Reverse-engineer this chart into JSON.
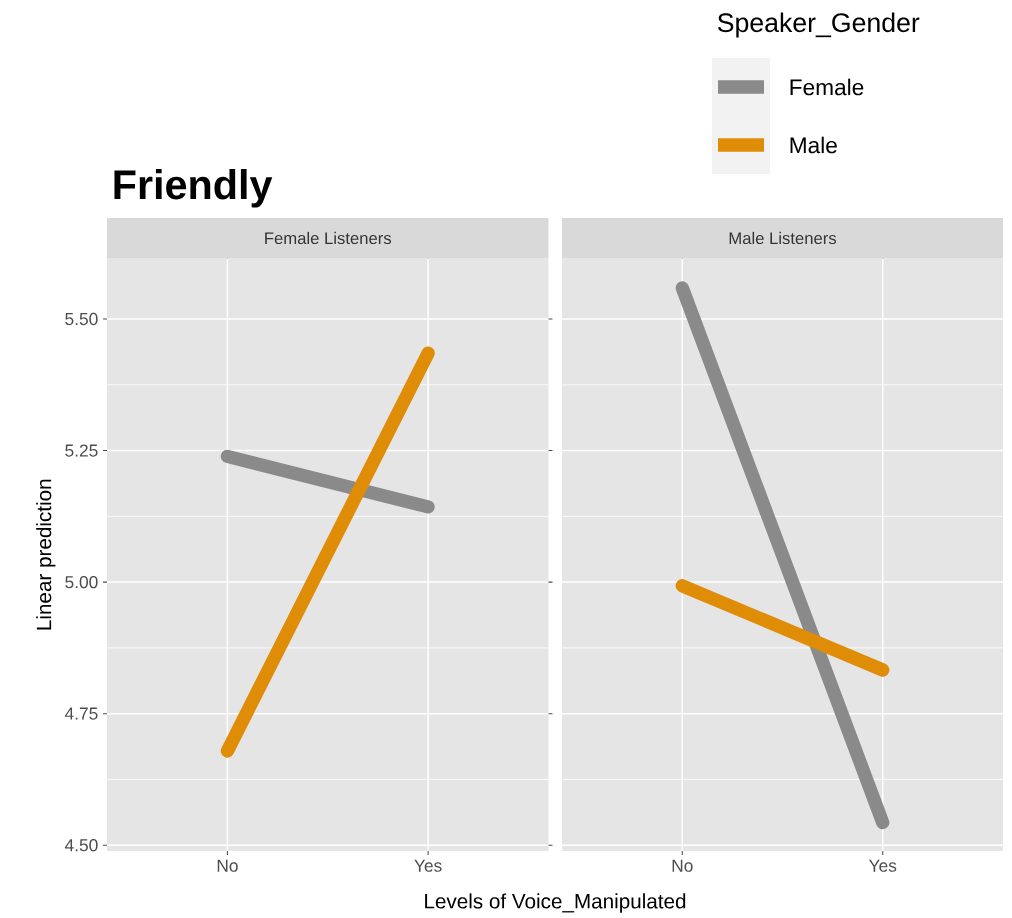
{
  "chart_data": [
    {
      "type": "line",
      "title": "Friendly",
      "subtitle": "Female Listeners",
      "xlabel": "Levels of Voice_Manipulated",
      "ylabel": "Linear prediction",
      "legend_title": "Speaker_Gender",
      "legend": "top right",
      "grid": true,
      "categories": [
        "No",
        "Yes"
      ],
      "series": [
        {
          "name": "Female",
          "color": "#8a8a8a",
          "values": [
            5.239,
            5.143
          ]
        },
        {
          "name": "Male",
          "color": "#df8c07",
          "values": [
            4.679,
            5.435
          ]
        }
      ],
      "ylim": [
        4.489,
        5.615
      ],
      "yticks": [
        {
          "value": 4.5,
          "label": "4.50"
        },
        {
          "value": 4.75,
          "label": "4.75"
        },
        {
          "value": 5.0,
          "label": "5.00"
        },
        {
          "value": 5.25,
          "label": "5.25"
        },
        {
          "value": 5.5,
          "label": "5.50"
        }
      ]
    },
    {
      "type": "line",
      "subtitle": "Male Listeners",
      "grid": true,
      "tick_labels": "x",
      "categories": [
        "No",
        "Yes"
      ],
      "series": [
        {
          "color": "#8a8a8a",
          "values": [
            5.559,
            4.543
          ]
        },
        {
          "color": "#df8c07",
          "values": [
            4.993,
            4.833
          ]
        }
      ],
      "ylim": [
        4.489,
        5.615
      ],
      "yticks": [
        {
          "value": 4.5,
          "label": null
        },
        {
          "value": 4.75,
          "label": null
        },
        {
          "value": 5.0,
          "label": null
        },
        {
          "value": 5.25,
          "label": null
        },
        {
          "value": 5.5,
          "label": null
        }
      ]
    }
  ]
}
